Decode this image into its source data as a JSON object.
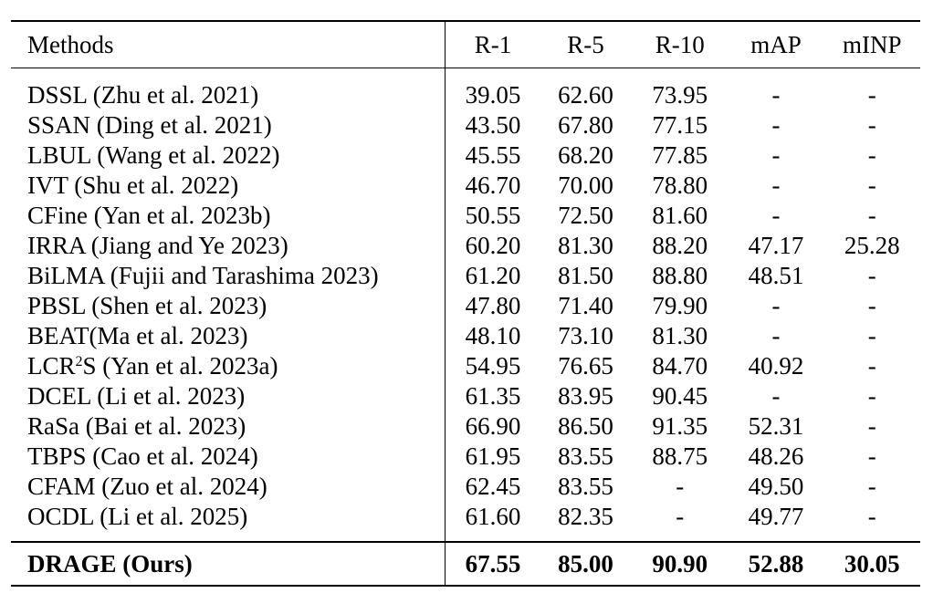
{
  "table": {
    "headers": [
      "Methods",
      "R-1",
      "R-5",
      "R-10",
      "mAP",
      "mINP"
    ],
    "rows": [
      {
        "method": "DSSL (Zhu et al. 2021)",
        "r1": "39.05",
        "r5": "62.60",
        "r10": "73.95",
        "map": "-",
        "minp": "-"
      },
      {
        "method": "SSAN (Ding et al. 2021)",
        "r1": "43.50",
        "r5": "67.80",
        "r10": "77.15",
        "map": "-",
        "minp": "-"
      },
      {
        "method": "LBUL (Wang et al. 2022)",
        "r1": "45.55",
        "r5": "68.20",
        "r10": "77.85",
        "map": "-",
        "minp": "-"
      },
      {
        "method": "IVT (Shu et al. 2022)",
        "r1": "46.70",
        "r5": "70.00",
        "r10": "78.80",
        "map": "-",
        "minp": "-"
      },
      {
        "method": "CFine (Yan et al. 2023b)",
        "r1": "50.55",
        "r5": "72.50",
        "r10": "81.60",
        "map": "-",
        "minp": "-"
      },
      {
        "method": "IRRA (Jiang and Ye 2023)",
        "r1": "60.20",
        "r5": "81.30",
        "r10": "88.20",
        "map": "47.17",
        "minp": "25.28"
      },
      {
        "method": "BiLMA (Fujii and Tarashima 2023)",
        "r1": "61.20",
        "r5": "81.50",
        "r10": "88.80",
        "map": "48.51",
        "minp": "-"
      },
      {
        "method": "PBSL (Shen et al. 2023)",
        "r1": "47.80",
        "r5": "71.40",
        "r10": "79.90",
        "map": "-",
        "minp": "-"
      },
      {
        "method": "BEAT(Ma et al. 2023)",
        "r1": "48.10",
        "r5": "73.10",
        "r10": "81.30",
        "map": "-",
        "minp": "-"
      },
      {
        "method_prefix": "LCR",
        "method_sup": "2",
        "method_suffix": "S (Yan et al. 2023a)",
        "r1": "54.95",
        "r5": "76.65",
        "r10": "84.70",
        "map": "40.92",
        "minp": "-"
      },
      {
        "method": "DCEL (Li et al. 2023)",
        "r1": "61.35",
        "r5": "83.95",
        "r10": "90.45",
        "map": "-",
        "minp": "-"
      },
      {
        "method": "RaSa (Bai et al. 2023)",
        "r1": "66.90",
        "r5": "86.50",
        "r10": "91.35",
        "map": "52.31",
        "minp": "-"
      },
      {
        "method": "TBPS (Cao et al. 2024)",
        "r1": "61.95",
        "r5": "83.55",
        "r10": "88.75",
        "map": "48.26",
        "minp": "-"
      },
      {
        "method": "CFAM  (Zuo et al. 2024)",
        "r1": "62.45",
        "r5": "83.55",
        "r10": "-",
        "map": "49.50",
        "minp": "-"
      },
      {
        "method": "OCDL  (Li et al. 2025)",
        "r1": "61.60",
        "r5": "82.35",
        "r10": "-",
        "map": "49.77",
        "minp": "-"
      }
    ],
    "ours": {
      "method": "DRAGE (Ours)",
      "r1": "67.55",
      "r5": "85.00",
      "r10": "90.90",
      "map": "52.88",
      "minp": "30.05"
    }
  }
}
